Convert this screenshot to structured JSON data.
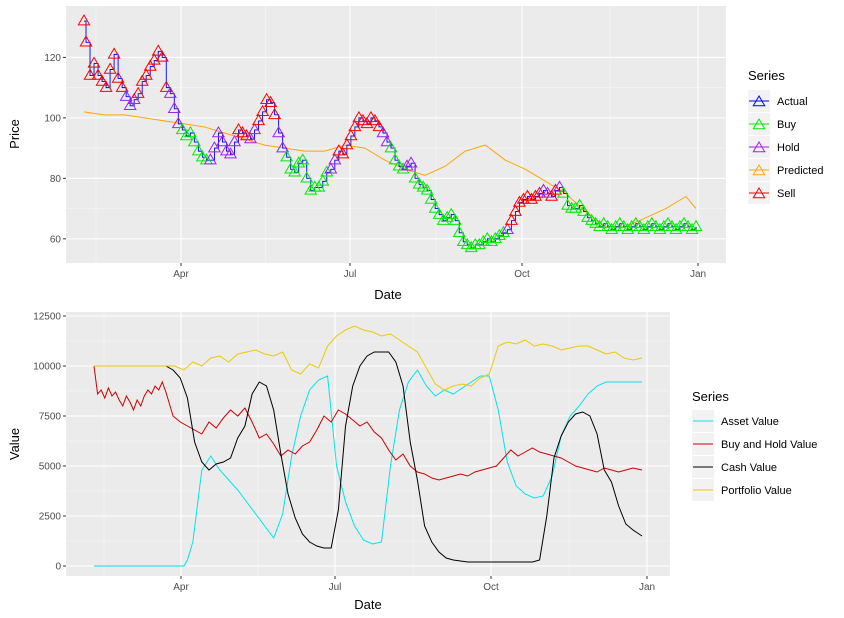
{
  "chart_data": [
    {
      "type": "line",
      "xlabel": "Date",
      "ylabel": "Price",
      "x_ticks": [
        "Apr",
        "Jul",
        "Oct",
        "Jan"
      ],
      "y_ticks": [
        "60",
        "80",
        "100",
        "120"
      ],
      "ylim": [
        52,
        137
      ],
      "legend_title": "Series",
      "legend_position": "right",
      "grid": true,
      "series": [
        {
          "name": "Actual",
          "color": "#0000ff",
          "marker": "triangle"
        },
        {
          "name": "Buy",
          "color": "#00ee00",
          "marker": "triangle"
        },
        {
          "name": "Hold",
          "color": "#a020f0",
          "marker": "triangle"
        },
        {
          "name": "Predicted",
          "color": "#ffa500",
          "marker": "triangle"
        },
        {
          "name": "Sell",
          "color": "#ff0000",
          "marker": "triangle"
        }
      ],
      "actual": {
        "x": [
          0,
          1,
          3,
          5,
          7,
          9,
          11,
          13,
          15,
          17,
          19,
          21,
          23,
          25,
          27,
          29,
          31,
          33,
          35,
          37,
          39,
          41,
          43,
          45,
          47,
          49,
          51,
          53,
          55,
          57,
          59,
          61,
          63,
          65,
          67,
          69,
          71,
          73,
          75,
          77,
          79,
          81,
          83,
          85,
          87,
          89,
          91,
          93,
          95,
          97,
          99,
          101,
          103,
          105,
          107,
          109,
          111,
          113,
          115,
          117,
          119,
          121,
          123,
          125,
          127,
          129,
          131,
          133,
          135,
          137,
          139,
          141,
          143,
          145,
          147,
          149,
          151,
          153,
          155,
          157,
          159,
          161,
          163,
          165,
          167,
          169,
          171,
          173,
          175,
          177,
          179,
          181,
          183,
          185,
          187,
          189,
          191,
          193,
          195,
          197,
          199,
          201,
          203,
          205,
          207,
          209,
          211,
          213,
          215,
          217,
          219,
          221,
          223,
          225,
          227,
          229,
          231,
          233,
          235,
          237,
          239,
          241,
          243,
          245,
          247,
          249,
          251,
          253,
          255,
          257,
          259,
          261,
          263,
          265,
          267,
          269,
          271,
          273,
          275,
          277,
          279,
          281,
          283,
          285,
          287,
          289,
          291,
          293,
          295,
          297,
          299,
          301,
          303,
          305
        ],
        "y": [
          132,
          125,
          114,
          118,
          114,
          112,
          110,
          116,
          121,
          113,
          110,
          107,
          104,
          106,
          108,
          112,
          114,
          117,
          119,
          122,
          120,
          110,
          108,
          103,
          98,
          96,
          94,
          95,
          92,
          89,
          87,
          86,
          86,
          90,
          95,
          92,
          89,
          88,
          92,
          96,
          95,
          94,
          93,
          96,
          99,
          102,
          106,
          105,
          101,
          95,
          90,
          87,
          83,
          82,
          85,
          86,
          80,
          76,
          77,
          77,
          79,
          82,
          83,
          86,
          89,
          88,
          91,
          94,
          97,
          100,
          99,
          98,
          100,
          99,
          97,
          95,
          92,
          90,
          86,
          84,
          83,
          84,
          85,
          80,
          78,
          77,
          76,
          73,
          70,
          68,
          66,
          67,
          68,
          66,
          62,
          59,
          58,
          57,
          58,
          58,
          59,
          60,
          59,
          60,
          61,
          62,
          63,
          66,
          69,
          72,
          73,
          74,
          73,
          74,
          75,
          76,
          75,
          74,
          76,
          77,
          75,
          71,
          70,
          70,
          71,
          69,
          67,
          66,
          65,
          64,
          65,
          64,
          63,
          64,
          65,
          64,
          63,
          64,
          65,
          64,
          63,
          64,
          65,
          64,
          63,
          64,
          65,
          64,
          63,
          64,
          65,
          64,
          63,
          64
        ]
      },
      "predicted": {
        "x": [
          0,
          10,
          20,
          30,
          40,
          50,
          60,
          70,
          80,
          90,
          100,
          110,
          120,
          130,
          140,
          150,
          160,
          170,
          180,
          190,
          200,
          210,
          220,
          230,
          240,
          250,
          260,
          270,
          280,
          290,
          300,
          305
        ],
        "y": [
          102,
          101,
          101,
          100,
          99,
          98,
          97,
          95,
          93,
          91,
          90,
          89,
          89,
          91,
          90,
          86,
          83,
          81,
          84,
          89,
          91,
          86,
          83,
          79,
          75,
          69,
          64,
          64,
          67,
          70,
          74,
          70
        ]
      },
      "signal_order": [
        "Sell",
        "Sell",
        "Sell",
        "Sell",
        "Sell",
        "Sell",
        "Sell",
        "Sell",
        "Sell",
        "Sell",
        "Sell",
        "Hold",
        "Hold",
        "Hold",
        "Sell",
        "Sell",
        "Sell",
        "Sell",
        "Sell",
        "Sell",
        "Sell",
        "Sell",
        "Hold",
        "Hold",
        "Hold",
        "Buy",
        "Buy",
        "Buy",
        "Buy",
        "Buy",
        "Buy",
        "Buy",
        "Hold",
        "Hold",
        "Hold",
        "Hold",
        "Hold",
        "Hold",
        "Hold",
        "Sell",
        "Sell",
        "Sell",
        "Hold",
        "Hold",
        "Sell",
        "Sell",
        "Sell",
        "Sell",
        "Sell",
        "Hold",
        "Hold",
        "Buy",
        "Buy",
        "Buy",
        "Buy",
        "Buy",
        "Buy",
        "Buy",
        "Buy",
        "Buy",
        "Buy",
        "Buy",
        "Hold",
        "Hold",
        "Sell",
        "Sell",
        "Sell",
        "Sell",
        "Sell",
        "Sell",
        "Sell",
        "Sell",
        "Sell",
        "Sell",
        "Sell",
        "Hold",
        "Hold",
        "Buy",
        "Buy",
        "Buy",
        "Buy",
        "Hold",
        "Hold",
        "Buy",
        "Buy",
        "Buy",
        "Buy",
        "Buy",
        "Buy",
        "Buy",
        "Buy",
        "Buy",
        "Buy",
        "Buy",
        "Buy",
        "Buy",
        "Buy",
        "Buy",
        "Buy",
        "Buy",
        "Buy",
        "Buy",
        "Buy",
        "Buy",
        "Buy",
        "Buy",
        "Hold",
        "Sell",
        "Sell",
        "Sell",
        "Sell",
        "Sell",
        "Sell",
        "Sell",
        "Sell",
        "Hold",
        "Hold",
        "Sell",
        "Sell",
        "Hold",
        "Buy",
        "Buy",
        "Buy",
        "Buy",
        "Buy",
        "Buy",
        "Buy",
        "Buy",
        "Buy",
        "Buy",
        "Buy",
        "Buy",
        "Buy",
        "Buy",
        "Buy",
        "Buy",
        "Buy",
        "Buy",
        "Buy",
        "Buy",
        "Buy",
        "Buy",
        "Buy",
        "Buy",
        "Buy",
        "Buy",
        "Buy",
        "Buy",
        "Buy",
        "Buy",
        "Buy",
        "Buy",
        "Buy",
        "Buy"
      ]
    },
    {
      "type": "line",
      "xlabel": "Date",
      "ylabel": "Value",
      "x_ticks": [
        "Apr",
        "Jul",
        "Oct",
        "Jan"
      ],
      "y_ticks": [
        "0",
        "2500",
        "5000",
        "7500",
        "10000",
        "12500"
      ],
      "ylim": [
        -500,
        12700
      ],
      "legend_title": "Series",
      "legend_position": "right",
      "grid": true,
      "series": [
        {
          "name": "Asset Value",
          "color": "#00e5ee",
          "x": [
            0,
            20,
            40,
            45,
            50,
            52,
            55,
            60,
            65,
            70,
            75,
            80,
            85,
            90,
            95,
            100,
            105,
            110,
            115,
            120,
            125,
            130,
            135,
            140,
            145,
            150,
            155,
            160,
            165,
            170,
            175,
            180,
            185,
            190,
            195,
            200,
            205,
            210,
            215,
            220,
            225,
            230,
            235,
            240,
            245,
            250,
            255,
            260,
            265,
            270,
            275,
            280,
            285,
            290,
            295,
            300,
            305
          ],
          "y": [
            0,
            0,
            0,
            0,
            0,
            300,
            1200,
            4800,
            5500,
            4800,
            4300,
            3800,
            3200,
            2600,
            2000,
            1400,
            2600,
            5500,
            7500,
            8800,
            9300,
            9500,
            5000,
            3200,
            2000,
            1300,
            1100,
            1200,
            5000,
            7800,
            9200,
            9800,
            9000,
            8500,
            8800,
            8600,
            8900,
            9200,
            9500,
            9500,
            7800,
            5200,
            4000,
            3600,
            3400,
            3500,
            4500,
            6500,
            7500,
            8000,
            8600,
            9000,
            9200,
            9200,
            9200,
            9200,
            9200
          ]
        },
        {
          "name": "Buy and Hold Value",
          "color": "#cd0000",
          "x": [
            0,
            2,
            4,
            6,
            8,
            10,
            12,
            14,
            16,
            18,
            20,
            22,
            24,
            26,
            28,
            30,
            32,
            34,
            36,
            38,
            40,
            44,
            48,
            52,
            56,
            60,
            64,
            68,
            72,
            76,
            80,
            84,
            88,
            92,
            96,
            100,
            104,
            108,
            112,
            116,
            120,
            124,
            128,
            132,
            136,
            140,
            144,
            148,
            152,
            156,
            160,
            164,
            168,
            172,
            176,
            180,
            184,
            188,
            192,
            196,
            200,
            204,
            208,
            212,
            216,
            220,
            224,
            228,
            232,
            236,
            240,
            244,
            248,
            252,
            256,
            260,
            264,
            268,
            272,
            276,
            280,
            284,
            288,
            292,
            296,
            300,
            305
          ],
          "y": [
            10000,
            8600,
            8800,
            8400,
            8900,
            8500,
            8700,
            8300,
            8000,
            8500,
            8200,
            7800,
            8300,
            8000,
            8500,
            8800,
            8600,
            9000,
            8800,
            9200,
            8700,
            7500,
            7200,
            7000,
            6800,
            6600,
            7200,
            6900,
            7400,
            7800,
            7500,
            7900,
            7200,
            6400,
            6600,
            6100,
            5500,
            5800,
            5600,
            6000,
            6200,
            6800,
            7500,
            7200,
            7800,
            7600,
            7300,
            7000,
            7200,
            6700,
            6400,
            5800,
            5300,
            5600,
            5000,
            4700,
            4600,
            4400,
            4300,
            4400,
            4500,
            4600,
            4500,
            4700,
            4800,
            4900,
            5000,
            5400,
            5800,
            5500,
            5700,
            5900,
            5700,
            5600,
            5500,
            5400,
            5200,
            5000,
            4900,
            4800,
            4700,
            4900,
            4800,
            4700,
            4800,
            4900,
            4800
          ]
        },
        {
          "name": "Cash Value",
          "color": "#000000",
          "x": [
            0,
            20,
            40,
            44,
            48,
            52,
            56,
            60,
            64,
            68,
            72,
            76,
            80,
            84,
            88,
            92,
            96,
            100,
            104,
            108,
            112,
            116,
            120,
            124,
            128,
            132,
            136,
            140,
            144,
            148,
            152,
            156,
            160,
            164,
            168,
            172,
            176,
            180,
            184,
            188,
            192,
            196,
            200,
            204,
            208,
            212,
            216,
            220,
            224,
            228,
            232,
            236,
            240,
            244,
            248,
            252,
            256,
            260,
            264,
            268,
            272,
            276,
            280,
            284,
            288,
            292,
            296,
            300,
            305
          ],
          "y": [
            10000,
            10000,
            10000,
            9800,
            9400,
            8400,
            6200,
            5200,
            4800,
            5100,
            5200,
            5400,
            6400,
            7000,
            8600,
            9200,
            9000,
            7800,
            5600,
            3600,
            2400,
            1600,
            1200,
            1000,
            900,
            900,
            2800,
            7000,
            9000,
            10000,
            10500,
            10700,
            10700,
            10700,
            10200,
            9000,
            6200,
            4300,
            2000,
            1200,
            700,
            400,
            300,
            250,
            200,
            200,
            200,
            200,
            200,
            200,
            200,
            200,
            200,
            200,
            300,
            2500,
            5400,
            6500,
            7200,
            7600,
            7700,
            7500,
            6600,
            4800,
            4200,
            3000,
            2100,
            1800,
            1500
          ]
        },
        {
          "name": "Portfolio Value",
          "color": "#eec900",
          "x": [
            0,
            20,
            40,
            45,
            50,
            55,
            60,
            65,
            70,
            75,
            80,
            85,
            90,
            95,
            100,
            105,
            110,
            115,
            120,
            125,
            130,
            135,
            140,
            145,
            150,
            155,
            160,
            165,
            170,
            175,
            180,
            185,
            190,
            195,
            200,
            205,
            210,
            215,
            220,
            225,
            230,
            235,
            240,
            245,
            250,
            255,
            260,
            265,
            270,
            275,
            280,
            285,
            290,
            295,
            300,
            305
          ],
          "y": [
            10000,
            10000,
            10000,
            10000,
            9800,
            10200,
            10000,
            10400,
            10500,
            10200,
            10600,
            10700,
            10800,
            10600,
            10500,
            10700,
            9800,
            9600,
            10100,
            9900,
            11000,
            11500,
            11800,
            12000,
            11800,
            11700,
            11500,
            11600,
            11300,
            11000,
            10700,
            9900,
            9100,
            8800,
            9000,
            9100,
            9000,
            9400,
            9600,
            11000,
            11200,
            11100,
            11300,
            11000,
            11100,
            11000,
            10800,
            10900,
            11000,
            11000,
            10800,
            10600,
            10700,
            10400,
            10300,
            10400
          ]
        }
      ]
    }
  ]
}
